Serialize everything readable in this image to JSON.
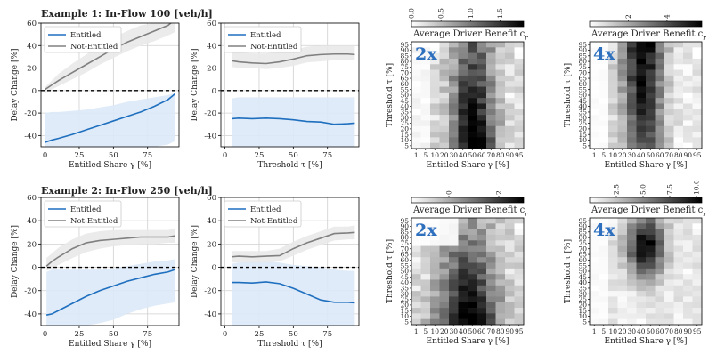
{
  "figure": {
    "row_titles": [
      "Example 1: In-Flow 100 [veh/h]",
      "Example 2: In-Flow 250 [veh/h]"
    ]
  },
  "colors": {
    "entitled": "#1f6fbf",
    "entitled_band": "#dce9f7",
    "not_entitled": "#808080",
    "not_entitled_band": "#e9e9e9",
    "grid": "#d0d0d0",
    "heat_low": "#ffffff",
    "heat_high": "#000000",
    "factor_text": "#2e6fbe"
  },
  "chart_data": [
    {
      "type": "line",
      "id": "e1_share",
      "title": "Example 1: In-Flow 100 [veh/h]",
      "xlabel": "Entitled Share γ [%]",
      "ylabel": "Delay Change [%]",
      "xlim": [
        -3,
        98
      ],
      "ylim": [
        -50,
        60
      ],
      "xticks": [
        0,
        25,
        50,
        75
      ],
      "yticks": [
        -40,
        -20,
        0,
        20,
        40,
        60
      ],
      "grid": true,
      "legend": "top-left",
      "zero_line": true,
      "series": [
        {
          "name": "Entitled",
          "x": [
            0,
            5,
            10,
            20,
            30,
            40,
            50,
            60,
            70,
            80,
            90,
            95
          ],
          "values": [
            -46,
            -44,
            -42.5,
            -39,
            -35,
            -31,
            -27,
            -23,
            -19,
            -14,
            -8,
            -3
          ],
          "band_low": [
            -50,
            -50,
            -50,
            -50,
            -50,
            -50,
            -50,
            -50,
            -50,
            -50,
            -48,
            -45
          ],
          "band_high": [
            -20,
            -19,
            -19,
            -18,
            -17,
            -15,
            -13,
            -10,
            -8,
            -6,
            -4,
            -2
          ]
        },
        {
          "name": "Not-Entitled",
          "x": [
            0,
            5,
            10,
            20,
            30,
            40,
            50,
            60,
            70,
            80,
            90,
            95
          ],
          "values": [
            1,
            5,
            9,
            16,
            23,
            30,
            37,
            43,
            48,
            53,
            58,
            63
          ],
          "band_low": [
            -2,
            1,
            4,
            10,
            16,
            23,
            29,
            35,
            40,
            44,
            49,
            52
          ],
          "band_high": [
            3,
            9,
            15,
            24,
            32,
            40,
            47,
            53,
            58,
            60,
            60,
            60
          ]
        }
      ]
    },
    {
      "type": "line",
      "id": "e1_threshold",
      "xlabel": "Threshold τ [%]",
      "ylabel": "Delay Change [%]",
      "xlim": [
        -3,
        98
      ],
      "ylim": [
        -50,
        60
      ],
      "xticks": [
        0,
        25,
        50,
        75
      ],
      "yticks": [
        -40,
        -20,
        0,
        20,
        40,
        60
      ],
      "grid": true,
      "legend": "top-left",
      "zero_line": true,
      "series": [
        {
          "name": "Entitled",
          "x": [
            5,
            10,
            20,
            30,
            40,
            50,
            60,
            70,
            80,
            90,
            95
          ],
          "values": [
            -25,
            -24.5,
            -25,
            -24.5,
            -25,
            -26,
            -27.5,
            -28,
            -30,
            -29.5,
            -29
          ],
          "band_low": [
            -50,
            -50,
            -50,
            -50,
            -50,
            -50,
            -50,
            -50,
            -50,
            -50,
            -50
          ],
          "band_high": [
            -7,
            -6,
            -6,
            -6,
            -6,
            -6,
            -6,
            -6,
            -6,
            -6,
            -6
          ]
        },
        {
          "name": "Not-Entitled",
          "x": [
            5,
            10,
            20,
            30,
            40,
            50,
            60,
            70,
            80,
            90,
            95
          ],
          "values": [
            26.5,
            25.5,
            24.5,
            24,
            25.5,
            28,
            31,
            32,
            32.5,
            32.5,
            32
          ],
          "band_low": [
            21,
            20,
            20,
            19,
            20,
            22,
            25,
            26,
            27,
            27,
            27
          ],
          "band_high": [
            35,
            34,
            33,
            33,
            34,
            36,
            39,
            40,
            40,
            40,
            40
          ]
        }
      ]
    },
    {
      "type": "heatmap",
      "id": "e1_heat_2x",
      "factor_label": "2x",
      "xlabel": "Entitled Share γ [%]",
      "ylabel": "Threshold τ [%]",
      "colorbar_label": "Average Driver Benefit c",
      "colorbar_subscript": "r",
      "colorbar_range": [
        0,
        1.9
      ],
      "colorbar_ticks": [
        "0.0",
        "0.5",
        "1.0",
        "1.5"
      ],
      "colorbar_tick_values": [
        0,
        0.5,
        1.0,
        1.5
      ],
      "x_categories": [
        "1",
        "5",
        "10",
        "20",
        "30",
        "40",
        "50",
        "60",
        "70",
        "80",
        "90",
        "95"
      ],
      "y_categories": [
        "95",
        "90",
        "85",
        "80",
        "75",
        "70",
        "65",
        "60",
        "55",
        "50",
        "45",
        "40",
        "35",
        "30",
        "25",
        "20",
        "15",
        "10",
        "5"
      ],
      "pattern": "e1_2x"
    },
    {
      "type": "heatmap",
      "id": "e1_heat_4x",
      "factor_label": "4x",
      "xlabel": "Entitled Share γ [%]",
      "ylabel": "Threshold τ [%]",
      "colorbar_label": "Average Driver Benefit c",
      "colorbar_subscript": "r",
      "colorbar_range": [
        0,
        5.8
      ],
      "colorbar_ticks": [
        "2",
        "4"
      ],
      "colorbar_tick_values": [
        2,
        4
      ],
      "x_categories": [
        "1",
        "5",
        "10",
        "20",
        "30",
        "40",
        "50",
        "60",
        "70",
        "80",
        "90",
        "95"
      ],
      "y_categories": [
        "95",
        "90",
        "85",
        "80",
        "75",
        "70",
        "65",
        "60",
        "55",
        "50",
        "45",
        "40",
        "35",
        "30",
        "25",
        "20",
        "15",
        "10",
        "5"
      ],
      "pattern": "e1_4x"
    },
    {
      "type": "line",
      "id": "e2_share",
      "title": "Example 2: In-Flow 250 [veh/h]",
      "xlabel": "Entitled Share γ [%]",
      "ylabel": "Delay Change [%]",
      "xlim": [
        -3,
        98
      ],
      "ylim": [
        -50,
        60
      ],
      "xticks": [
        0,
        25,
        50,
        75
      ],
      "yticks": [
        -40,
        -20,
        0,
        20,
        40,
        60
      ],
      "grid": true,
      "legend": "top-left",
      "zero_line": true,
      "series": [
        {
          "name": "Entitled",
          "x": [
            1,
            5,
            10,
            20,
            30,
            40,
            50,
            60,
            70,
            80,
            90,
            95
          ],
          "values": [
            -41,
            -40,
            -37,
            -31,
            -25,
            -20,
            -16,
            -12,
            -9,
            -6,
            -4,
            -2
          ],
          "band_low": [
            -50,
            -50,
            -50,
            -50,
            -50,
            -48,
            -45,
            -40,
            -36,
            -33,
            -31,
            -30
          ],
          "band_high": [
            -4,
            -2,
            -2,
            -2,
            -2,
            -2,
            -1,
            1,
            3,
            5,
            6,
            7
          ]
        },
        {
          "name": "Not-Entitled",
          "x": [
            1,
            5,
            10,
            20,
            30,
            40,
            50,
            60,
            70,
            80,
            90,
            95
          ],
          "values": [
            1,
            5,
            9,
            16,
            21,
            23,
            24,
            25,
            26,
            26,
            26,
            27
          ],
          "band_low": [
            -3,
            -1,
            2,
            8,
            13,
            16,
            18,
            19,
            20,
            20,
            21,
            21
          ],
          "band_high": [
            8,
            12,
            17,
            24,
            29,
            31,
            32,
            32,
            32,
            32,
            32,
            33
          ]
        }
      ]
    },
    {
      "type": "line",
      "id": "e2_threshold",
      "xlabel": "Threshold τ [%]",
      "ylabel": "Delay Change [%]",
      "xlim": [
        -3,
        98
      ],
      "ylim": [
        -50,
        60
      ],
      "xticks": [
        0,
        25,
        50,
        75
      ],
      "yticks": [
        -40,
        -20,
        0,
        20,
        40,
        60
      ],
      "grid": true,
      "legend": "top-left",
      "zero_line": true,
      "series": [
        {
          "name": "Entitled",
          "x": [
            5,
            10,
            20,
            30,
            40,
            50,
            60,
            70,
            80,
            90,
            95
          ],
          "values": [
            -13,
            -13,
            -13.5,
            -12.5,
            -14,
            -18,
            -23,
            -28,
            -30,
            -30,
            -30.5
          ],
          "band_low": [
            -50,
            -50,
            -50,
            -50,
            -50,
            -50,
            -50,
            -50,
            -50,
            -50,
            -50
          ],
          "band_high": [
            3,
            4,
            5,
            5,
            4,
            2,
            1,
            0,
            -2,
            -3,
            -3
          ]
        },
        {
          "name": "Not-Entitled",
          "x": [
            5,
            10,
            20,
            30,
            40,
            50,
            60,
            70,
            80,
            90,
            95
          ],
          "values": [
            9,
            9.5,
            9,
            9.5,
            10,
            16,
            21,
            25,
            29,
            29.5,
            30
          ],
          "band_low": [
            4,
            4,
            4,
            4,
            5,
            10,
            15,
            19,
            23,
            24,
            24
          ],
          "band_high": [
            14,
            14,
            14,
            14,
            16,
            22,
            27,
            31,
            35,
            35,
            36
          ]
        }
      ]
    },
    {
      "type": "heatmap",
      "id": "e2_heat_2x",
      "factor_label": "2x",
      "xlabel": "Entitled Share γ [%]",
      "ylabel": "Threshold τ [%]",
      "colorbar_label": "Average Driver Benefit c",
      "colorbar_subscript": "r",
      "colorbar_range": [
        -1.5,
        3
      ],
      "colorbar_ticks": [
        "0",
        "2"
      ],
      "colorbar_tick_values": [
        0,
        2
      ],
      "x_categories": [
        "1",
        "5",
        "10",
        "20",
        "30",
        "40",
        "50",
        "60",
        "70",
        "80",
        "90",
        "95"
      ],
      "y_categories": [
        "95",
        "90",
        "85",
        "80",
        "75",
        "70",
        "65",
        "60",
        "55",
        "50",
        "45",
        "40",
        "35",
        "30",
        "25",
        "20",
        "15",
        "10",
        "5"
      ],
      "pattern": "e2_2x"
    },
    {
      "type": "heatmap",
      "id": "e2_heat_4x",
      "factor_label": "4x",
      "xlabel": "Entitled Share γ [%]",
      "ylabel": "Threshold τ [%]",
      "colorbar_label": "Average Driver Benefit c",
      "colorbar_subscript": "r",
      "colorbar_range": [
        0,
        10.5
      ],
      "colorbar_ticks": [
        "2.5",
        "5.0",
        "7.5",
        "10.0"
      ],
      "colorbar_tick_values": [
        2.5,
        5.0,
        7.5,
        10.0
      ],
      "x_categories": [
        "1",
        "5",
        "10",
        "20",
        "30",
        "40",
        "50",
        "60",
        "70",
        "80",
        "90",
        "95"
      ],
      "y_categories": [
        "95",
        "90",
        "85",
        "80",
        "75",
        "70",
        "65",
        "60",
        "55",
        "50",
        "45",
        "40",
        "35",
        "30",
        "25",
        "20",
        "15",
        "10",
        "5"
      ],
      "pattern": "e2_4x"
    }
  ]
}
